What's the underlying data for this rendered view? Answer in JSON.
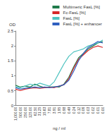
{
  "chart_data": {
    "type": "line",
    "x_label": "ng / ml",
    "y_label": "OD",
    "categories": [
      "1,000.00",
      "500.00",
      "250.00",
      "125.00",
      "62.50",
      "31.25",
      "15.63",
      "7.81",
      "3.91",
      "1.95",
      "0.98",
      "0.49",
      "0.24",
      "0.12",
      "0.06",
      "0.03",
      "0.02",
      "0.01",
      "0.00"
    ],
    "series": [
      {
        "name": "Multimeric FasL [%]",
        "color": "#1f7a4a",
        "values": [
          0.68,
          0.62,
          0.65,
          0.62,
          0.72,
          0.65,
          0.6,
          0.62,
          0.63,
          0.62,
          0.72,
          0.95,
          1.3,
          1.6,
          1.75,
          1.9,
          2.0,
          2.1,
          2.15
        ]
      },
      {
        "name": "Fc-FasL [%]",
        "color": "#d62728",
        "values": [
          0.55,
          0.5,
          0.55,
          0.58,
          0.6,
          0.58,
          0.6,
          0.62,
          0.6,
          0.65,
          0.7,
          0.9,
          1.25,
          1.55,
          1.7,
          1.85,
          1.95,
          2.0,
          1.95
        ]
      },
      {
        "name": "FasL [%]",
        "color": "#4fc3c0",
        "values": [
          0.62,
          0.6,
          0.65,
          0.72,
          0.68,
          0.75,
          0.7,
          0.65,
          0.8,
          1.1,
          1.4,
          1.65,
          1.8,
          1.85,
          1.9,
          2.0,
          2.05,
          2.1,
          2.2
        ]
      },
      {
        "name": "FasL [%] + enhancer",
        "color": "#2f5fbf",
        "values": [
          0.6,
          0.55,
          0.58,
          0.6,
          0.62,
          0.6,
          0.62,
          0.6,
          0.62,
          0.65,
          0.7,
          0.85,
          1.15,
          1.5,
          1.75,
          1.95,
          2.05,
          2.15,
          2.1
        ]
      }
    ],
    "ylim": [
      0,
      2.5
    ],
    "yticks": [
      0,
      0.5,
      1,
      1.5,
      2,
      2.5
    ],
    "legend": "top-right",
    "grid": false
  }
}
